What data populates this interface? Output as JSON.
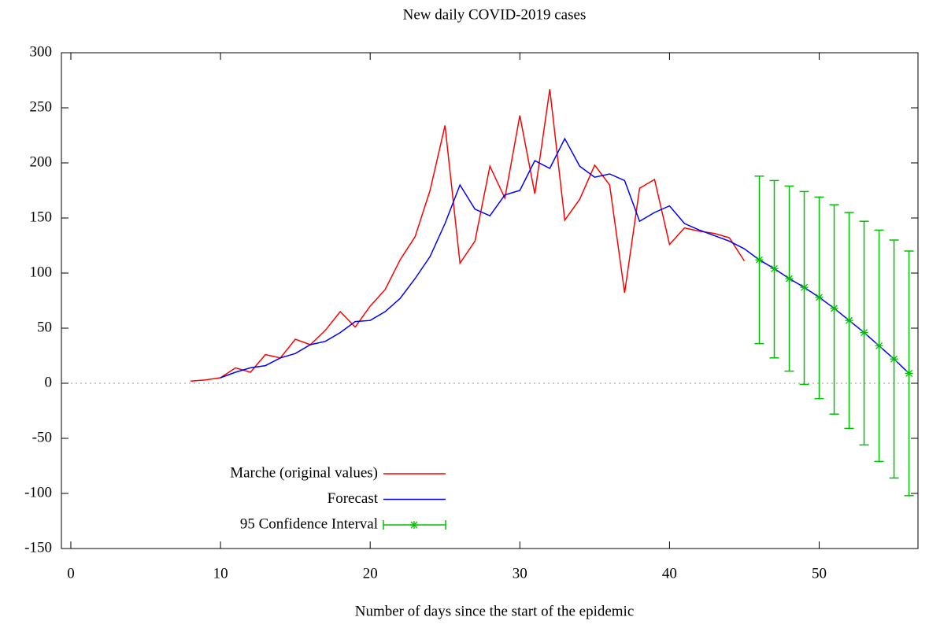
{
  "chart_data": {
    "type": "line",
    "title": "New daily COVID-2019 cases",
    "x_label": "Number of days since the start of the epidemic",
    "xlim": [
      -0.63,
      56.6
    ],
    "xticks": [
      0,
      10,
      20,
      30,
      40,
      50
    ],
    "ylim": [
      -150,
      300
    ],
    "yticks": [
      -150,
      -100,
      -50,
      0,
      50,
      100,
      150,
      200,
      250,
      300
    ],
    "zero_line": true,
    "legend": "lower left",
    "series": [
      {
        "name": "Marche (original values)",
        "color": "#ff0000",
        "x": [
          8,
          9,
          10,
          11,
          12,
          13,
          14,
          15,
          16,
          17,
          18,
          19,
          20,
          21,
          22,
          23,
          24,
          25,
          26,
          27,
          28,
          29,
          30,
          31,
          32,
          33,
          34,
          35,
          36,
          37,
          38,
          39,
          40,
          41,
          42,
          43,
          44,
          45
        ],
        "values": [
          2,
          3,
          5,
          14,
          10,
          26,
          23,
          40,
          35,
          48,
          65,
          51,
          70,
          85,
          112,
          133,
          175,
          234,
          109,
          129,
          197,
          168,
          243,
          172,
          267,
          148,
          167,
          198,
          180,
          82,
          177,
          185,
          126,
          141,
          138,
          136,
          132,
          111
        ]
      },
      {
        "name": "Forecast",
        "color": "#0000ff",
        "x": [
          10,
          11,
          12,
          13,
          14,
          15,
          16,
          17,
          18,
          19,
          20,
          21,
          22,
          23,
          24,
          25,
          26,
          27,
          28,
          29,
          30,
          31,
          32,
          33,
          34,
          35,
          36,
          37,
          38,
          39,
          40,
          41,
          42,
          43,
          44,
          45,
          46,
          47,
          48,
          49,
          50,
          51,
          52,
          53,
          54,
          55,
          56
        ],
        "values": [
          5,
          10,
          14,
          16,
          23,
          27,
          35,
          38,
          46,
          56,
          57,
          65,
          77,
          95,
          115,
          145,
          180,
          158,
          152,
          171,
          175,
          202,
          195,
          222,
          197,
          187,
          190,
          184,
          147,
          155,
          161,
          145,
          139,
          134,
          129,
          122,
          112,
          104,
          95,
          87,
          78,
          68,
          57,
          46,
          34,
          22,
          9
        ]
      },
      {
        "name": "95 Confidence Interval",
        "color": "#00c000",
        "type": "errorbar",
        "x": [
          46,
          47,
          48,
          49,
          50,
          51,
          52,
          53,
          54,
          55,
          56
        ],
        "values": [
          112,
          104,
          95,
          87,
          78,
          68,
          57,
          46,
          34,
          22,
          9
        ],
        "low": [
          36,
          23,
          11,
          -1,
          -14,
          -28,
          -41,
          -56,
          -71,
          -86,
          -102
        ],
        "high": [
          188,
          184,
          179,
          174,
          169,
          162,
          155,
          147,
          139,
          130,
          120
        ]
      }
    ]
  }
}
